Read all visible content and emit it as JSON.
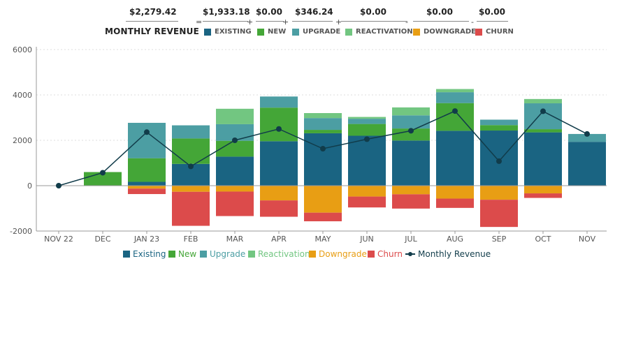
{
  "summary": {
    "title": "MONTHLY REVENUE",
    "total": "$2,279.42",
    "existing": "$1,933.18",
    "new": "$0.00",
    "upgrade": "$346.24",
    "reactivation": "$0.00",
    "downgrade": "$0.00",
    "churn": "$0.00",
    "op_equals": "=",
    "op_plus": "+",
    "op_minus": "-",
    "legend": [
      "EXISTING",
      "NEW",
      "UPGRADE",
      "REACTIVATION",
      "DOWNGRADE",
      "CHURN"
    ]
  },
  "colors": {
    "existing": "#1a6482",
    "new": "#44a637",
    "upgrade": "#4c9ea3",
    "reactivation": "#72c681",
    "downgrade": "#e89e14",
    "churn": "#dc4b4b",
    "line": "#113c4a",
    "axis": "#999999",
    "grid": "#dddddd",
    "text": "#555555"
  },
  "chart_data": {
    "type": "bar",
    "stacked": true,
    "title": "",
    "xlabel": "",
    "ylabel": "",
    "ylim": [
      -2000,
      6000
    ],
    "yticks": [
      -2000,
      0,
      2000,
      4000,
      6000
    ],
    "grid": true,
    "legend_position": "bottom-center",
    "categories": [
      "NOV 22",
      "DEC",
      "JAN 23",
      "FEB",
      "MAR",
      "APR",
      "MAY",
      "JUN",
      "JUL",
      "AUG",
      "SEP",
      "OCT",
      "NOV"
    ],
    "series": [
      {
        "name": "Existing",
        "key": "existing",
        "values": [
          0,
          0,
          170,
          960,
          1280,
          1960,
          2310,
          2200,
          1990,
          2420,
          2430,
          2350,
          1933
        ]
      },
      {
        "name": "New",
        "key": "new",
        "values": [
          0,
          600,
          1040,
          1120,
          700,
          1480,
          150,
          520,
          530,
          1220,
          240,
          140,
          0
        ]
      },
      {
        "name": "Upgrade",
        "key": "upgrade",
        "values": [
          0,
          0,
          1560,
          580,
          730,
          490,
          520,
          230,
          580,
          480,
          240,
          1140,
          346
        ]
      },
      {
        "name": "Reactivation",
        "key": "reactivation",
        "values": [
          0,
          0,
          0,
          0,
          680,
          0,
          220,
          80,
          350,
          140,
          0,
          190,
          0
        ]
      },
      {
        "name": "Downgrade",
        "key": "downgrade",
        "values": [
          0,
          0,
          -130,
          -270,
          -260,
          -650,
          -1190,
          -480,
          -380,
          -570,
          -620,
          -340,
          0
        ]
      },
      {
        "name": "Churn",
        "key": "churn",
        "values": [
          0,
          0,
          -240,
          -1500,
          -1080,
          -720,
          -380,
          -480,
          -630,
          -410,
          -1200,
          -200,
          0
        ]
      }
    ],
    "line": {
      "name": "Monthly Revenue",
      "values": [
        0,
        570,
        2360,
        850,
        2000,
        2500,
        1630,
        2050,
        2420,
        3290,
        1080,
        3280,
        2279
      ]
    }
  }
}
